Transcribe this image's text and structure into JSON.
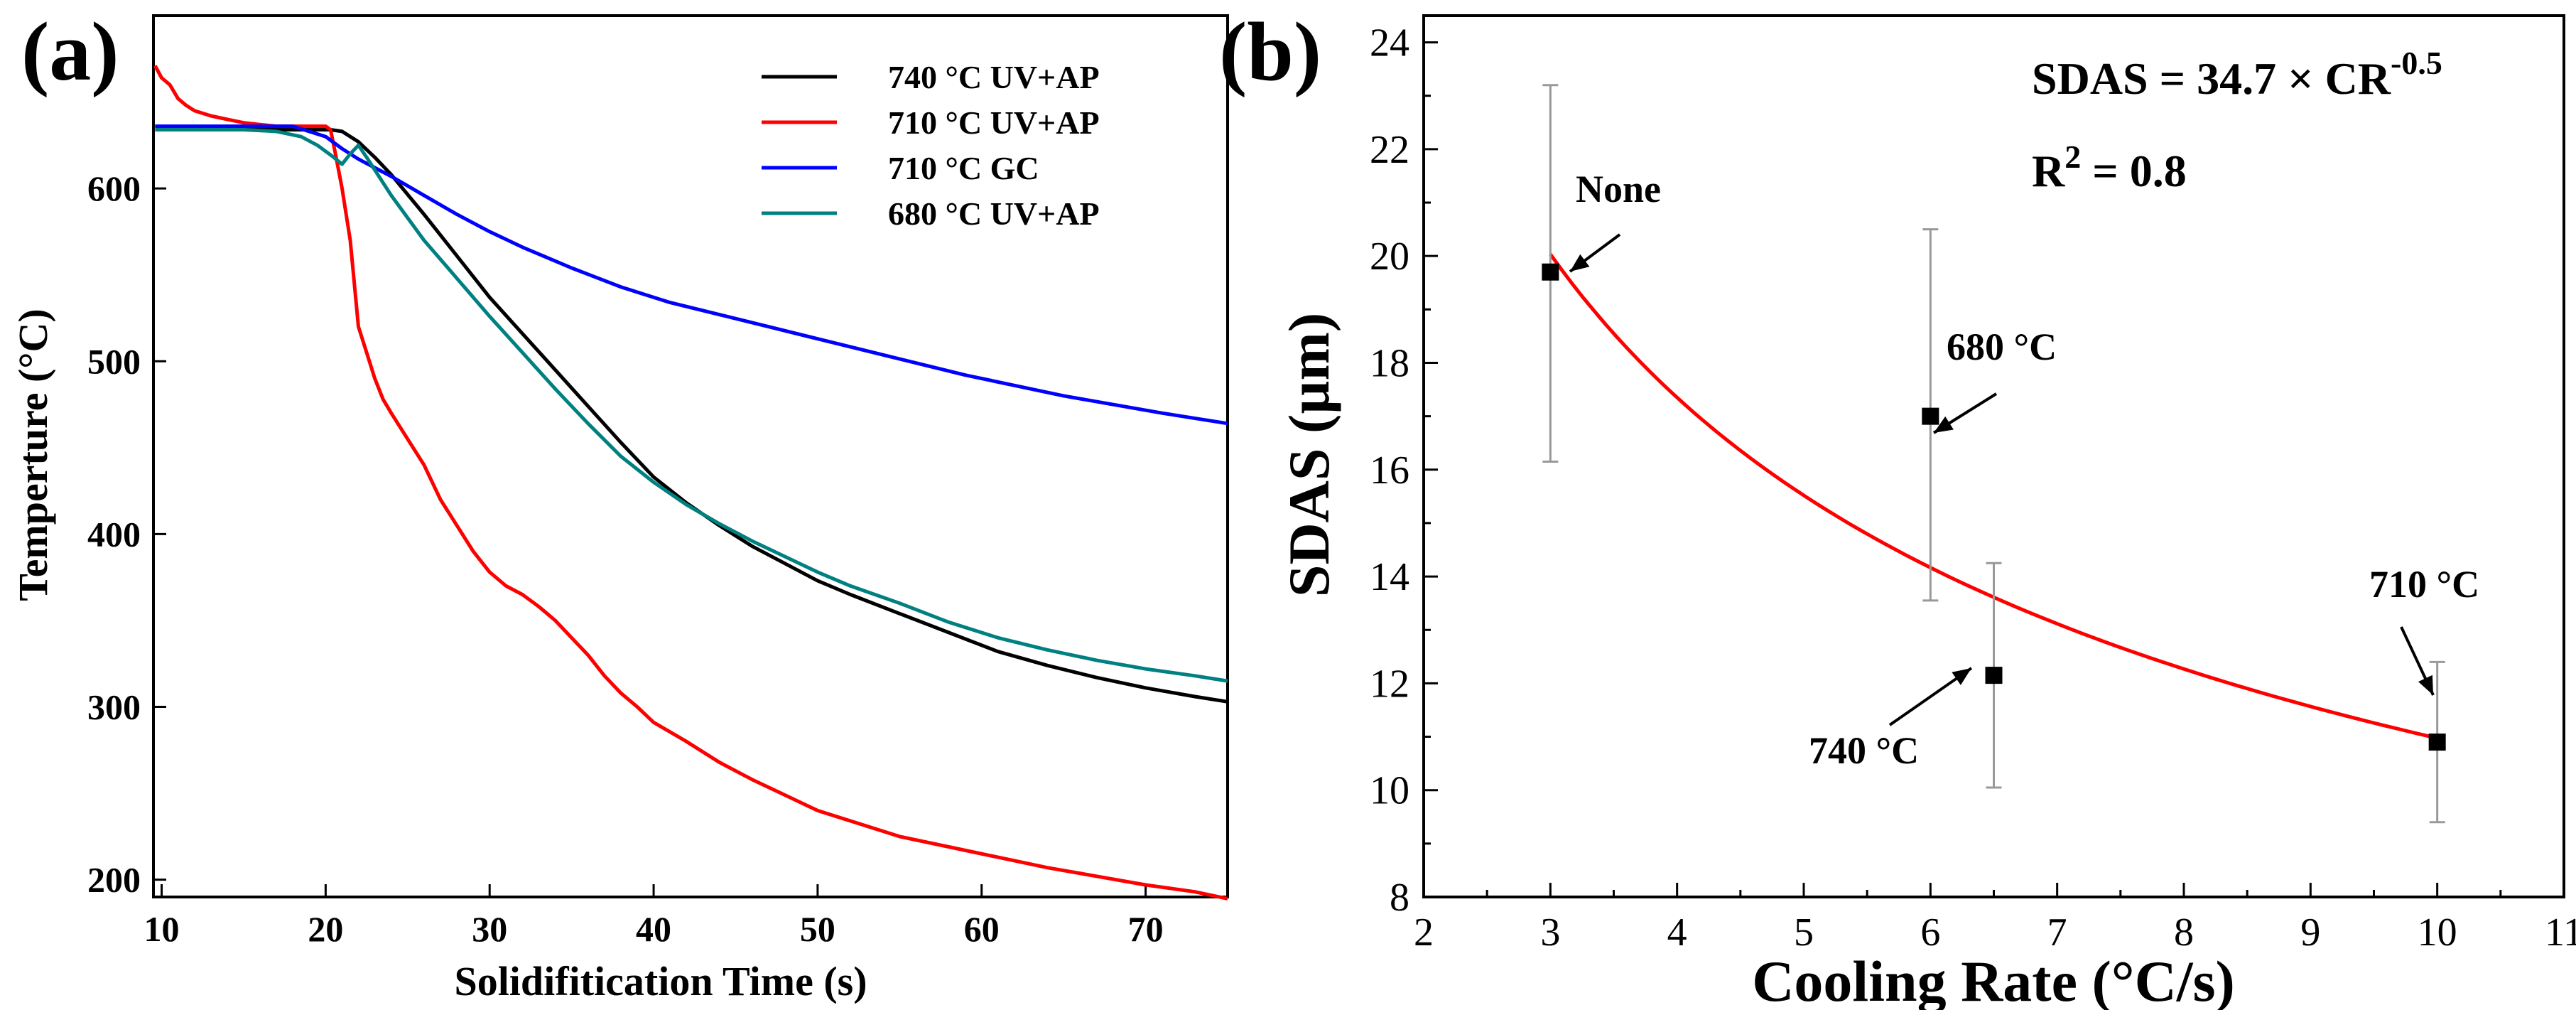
{
  "chart_data": [
    {
      "panel": "(a)",
      "type": "line",
      "title": "",
      "xlabel": "Solidifitication Time (s)",
      "ylabel": "Temperture (°C)",
      "xlim": [
        9.5,
        75
      ],
      "ylim": [
        190,
        700
      ],
      "xticks": [
        10,
        20,
        30,
        40,
        50,
        60,
        70
      ],
      "yticks": [
        200,
        300,
        400,
        500,
        600
      ],
      "legend_position": "top-right",
      "series": [
        {
          "name": "740 °C UV+AP",
          "color": "#000000",
          "x": [
            10,
            11,
            12,
            13,
            15,
            17,
            19,
            20.3,
            21,
            22,
            23,
            24,
            26,
            28,
            30,
            32,
            34,
            36,
            38,
            40,
            42,
            44,
            46,
            48,
            50,
            52,
            55,
            58,
            61,
            64,
            67,
            70,
            73,
            75
          ],
          "y": [
            634,
            634,
            634,
            634,
            634,
            634,
            634,
            634,
            633,
            627,
            618,
            608,
            585,
            561,
            537,
            516,
            495,
            474,
            453,
            433,
            418,
            405,
            393,
            383,
            373,
            365,
            354,
            343,
            332,
            324,
            317,
            311,
            306,
            303
          ]
        },
        {
          "name": "710 °C UV+AP",
          "color": "#ff0000",
          "x": [
            9.6,
            10,
            10.5,
            11,
            11.5,
            12,
            13,
            14,
            15,
            16,
            17,
            18,
            19,
            20,
            20.3,
            20.6,
            21,
            21.5,
            22,
            22.5,
            23,
            23.5,
            24,
            25,
            26,
            27,
            28,
            29,
            30,
            31,
            32,
            33,
            34,
            35,
            36,
            37,
            38,
            39,
            40,
            42,
            44,
            46,
            48,
            50,
            52,
            55,
            58,
            61,
            64,
            67,
            70,
            73,
            75
          ],
          "y": [
            671,
            664,
            660,
            652,
            648,
            645,
            642,
            640,
            638,
            637,
            636,
            636,
            636,
            636,
            634,
            620,
            600,
            570,
            520,
            505,
            490,
            478,
            470,
            455,
            440,
            420,
            405,
            390,
            378,
            370,
            365,
            358,
            350,
            340,
            330,
            318,
            308,
            300,
            291,
            280,
            268,
            258,
            249,
            240,
            234,
            225,
            219,
            213,
            207,
            202,
            197,
            193,
            189
          ]
        },
        {
          "name": "710 °C GC",
          "color": "#0000ff",
          "x": [
            9.6,
            12,
            15,
            18,
            20,
            21,
            22,
            24,
            26,
            28,
            30,
            32,
            35,
            38,
            41,
            44,
            47,
            50,
            53,
            56,
            59,
            62,
            65,
            68,
            71,
            75
          ],
          "y": [
            636,
            636,
            636,
            636,
            630,
            623,
            617,
            607,
            596,
            585,
            575,
            566,
            554,
            543,
            534,
            527,
            520,
            513,
            506,
            499,
            492,
            486,
            480,
            475,
            470,
            464
          ]
        },
        {
          "name": "680 °C UV+AP",
          "color": "#008080",
          "x": [
            9.6,
            12,
            15,
            17,
            18.5,
            19.5,
            20.5,
            21,
            21.5,
            22,
            22.5,
            24,
            26,
            28,
            30,
            32,
            34,
            36,
            38,
            40,
            42,
            44,
            46,
            48,
            50,
            52,
            55,
            58,
            61,
            64,
            67,
            70,
            73,
            75
          ],
          "y": [
            634,
            634,
            634,
            633,
            630,
            625,
            618,
            614,
            620,
            625,
            618,
            596,
            570,
            548,
            526,
            505,
            484,
            464,
            445,
            430,
            417,
            406,
            396,
            387,
            378,
            370,
            360,
            349,
            340,
            333,
            327,
            322,
            318,
            315
          ]
        }
      ]
    },
    {
      "panel": "(b)",
      "type": "scatter",
      "title": "",
      "xlabel": "Cooling Rate (°C/s)",
      "ylabel": "SDAS (µm)",
      "xlim": [
        2,
        11
      ],
      "ylim": [
        8,
        24.5
      ],
      "xticks": [
        2,
        3,
        4,
        5,
        6,
        7,
        8,
        9,
        10,
        11
      ],
      "yticks": [
        8,
        10,
        12,
        14,
        16,
        18,
        20,
        22,
        24
      ],
      "points": [
        {
          "label": "None",
          "x": 3.0,
          "y": 19.7,
          "err_low": 16.15,
          "err_high": 23.2
        },
        {
          "label": "680 °C",
          "x": 6.0,
          "y": 17.0,
          "err_low": 13.55,
          "err_high": 20.5
        },
        {
          "label": "740 °C",
          "x": 6.5,
          "y": 12.15,
          "err_low": 10.05,
          "err_high": 14.25
        },
        {
          "label": "710 °C",
          "x": 10.0,
          "y": 10.9,
          "err_low": 9.4,
          "err_high": 12.4
        }
      ],
      "fit": {
        "name": "power-law fit",
        "coefficient": 34.7,
        "exponent": -0.5,
        "x_range": [
          3,
          10
        ],
        "color": "#ff0000"
      },
      "annotations": {
        "equation_main": "SDAS = 34.7 × CR",
        "equation_exp": "-0.5",
        "r2_main": "R",
        "r2_sup": "2",
        "r2_value": " = 0.8"
      }
    }
  ]
}
